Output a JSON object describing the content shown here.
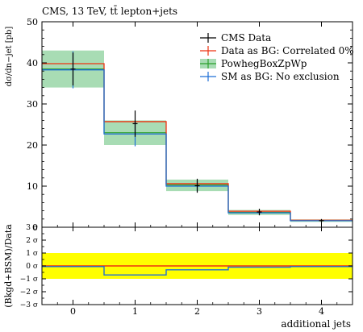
{
  "chart_data": [
    {
      "type": "line",
      "title": "CMS, 13 TeV, tt̄ lepton+jets",
      "ylabel": "dσ/dn−jet [pb]",
      "xlabel": "",
      "x": [
        0,
        1,
        2,
        3,
        4
      ],
      "ylim": [
        0,
        50
      ],
      "yticks": [
        "0",
        "10",
        "20",
        "30",
        "40",
        "50"
      ],
      "legend_position": "top-right",
      "series": [
        {
          "name": "CMS Data",
          "color": "#000000",
          "style": "points",
          "values": [
            38.5,
            25.2,
            10.1,
            3.7,
            1.6
          ],
          "err_lo": [
            4.0,
            3.2,
            1.7,
            0.8,
            0.4
          ],
          "err_hi": [
            4.0,
            3.2,
            1.7,
            0.8,
            0.4
          ]
        },
        {
          "name": "Data as BG: Correlated 0%",
          "color": "#ee3311",
          "style": "step",
          "values": [
            39.8,
            25.7,
            10.6,
            3.9,
            1.7
          ]
        },
        {
          "name": "PowhegBoxZpWp",
          "color": "#2ca02c",
          "band_color": "#a8dcb4",
          "style": "band",
          "values": [
            38.5,
            23.0,
            10.3,
            3.6,
            1.6
          ],
          "band_lo": [
            34.0,
            20.0,
            8.8,
            3.0,
            1.3
          ],
          "band_hi": [
            43.0,
            26.0,
            11.6,
            4.2,
            1.9
          ]
        },
        {
          "name": "SM as BG: No exclusion",
          "color": "#1f6fd6",
          "style": "step",
          "values": [
            38.3,
            22.7,
            10.0,
            3.5,
            1.6
          ],
          "err_lo": [
            4.5,
            3.0,
            1.3,
            0.4,
            0.2
          ],
          "err_hi": [
            4.5,
            3.0,
            1.3,
            0.4,
            0.2
          ]
        }
      ]
    },
    {
      "type": "line",
      "title": "",
      "ylabel": "(Bkgd+BSM)/Data",
      "xlabel": "additional jets",
      "x": [
        0,
        1,
        2,
        3,
        4
      ],
      "xticks": [
        "0",
        "1",
        "2",
        "3",
        "4"
      ],
      "ylim": [
        -3,
        3
      ],
      "yticks": [
        "−3 σ",
        "−2 σ",
        "−1 σ",
        "0 σ",
        "1 σ",
        "2 σ",
        "3 σ"
      ],
      "band": {
        "lo": -1,
        "hi": 1,
        "color": "#ffff00"
      },
      "series": [
        {
          "name": "",
          "color": "#ee3311",
          "values": [
            0.0,
            0.0,
            0.0,
            0.0,
            0.0
          ]
        },
        {
          "name": "",
          "color": "#1f6fd6",
          "values": [
            -0.05,
            -0.7,
            -0.3,
            -0.1,
            -0.05
          ]
        }
      ]
    }
  ]
}
